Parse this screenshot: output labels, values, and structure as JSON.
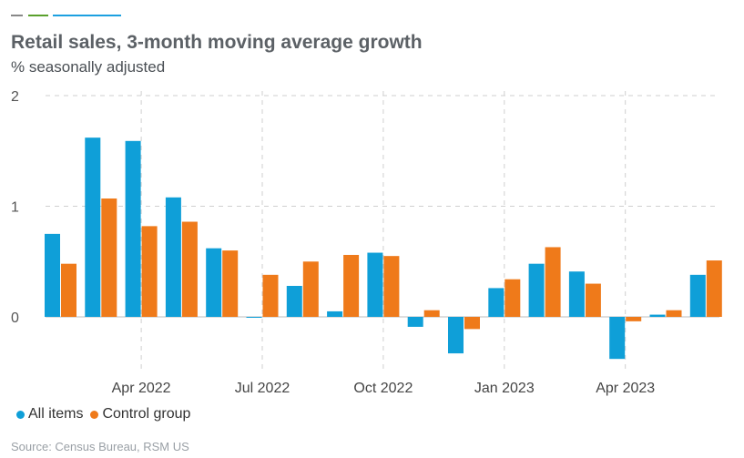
{
  "header": {
    "title": "Retail sales, 3-month moving average growth",
    "subtitle": "% seasonally adjusted"
  },
  "accent_colors": [
    "#888888",
    "#5aa02c",
    "#1ca0e0"
  ],
  "legend": {
    "items": [
      {
        "label": "All items",
        "color": "#0f9fd8"
      },
      {
        "label": "Control group",
        "color": "#ef7a1a"
      }
    ]
  },
  "footer": {
    "source": "Source: Census Bureau, RSM US"
  },
  "chart_data": {
    "type": "bar",
    "categories": [
      "Feb 2022",
      "Mar 2022",
      "Apr 2022",
      "May 2022",
      "Jun 2022",
      "Jul 2022",
      "Aug 2022",
      "Sep 2022",
      "Oct 2022",
      "Nov 2022",
      "Dec 2022",
      "Jan 2023",
      "Feb 2023",
      "Mar 2023",
      "Apr 2023",
      "May 2023",
      "Jun 2023"
    ],
    "x_tick_labels": [
      "Apr 2022",
      "Jul 2022",
      "Oct 2022",
      "Jan 2023",
      "Apr 2023"
    ],
    "x_tick_positions": [
      2,
      5,
      8,
      11,
      14
    ],
    "series": [
      {
        "name": "All items",
        "color": "#0f9fd8",
        "values": [
          0.75,
          1.62,
          1.59,
          1.08,
          0.62,
          0.0,
          0.28,
          0.05,
          0.58,
          -0.09,
          -0.33,
          0.26,
          0.48,
          0.41,
          -0.38,
          0.02,
          0.38
        ]
      },
      {
        "name": "Control group",
        "color": "#ef7a1a",
        "values": [
          0.48,
          1.07,
          0.82,
          0.86,
          0.6,
          0.38,
          0.5,
          0.56,
          0.55,
          0.06,
          -0.11,
          0.34,
          0.63,
          0.3,
          -0.04,
          0.06,
          0.51
        ]
      }
    ],
    "ylim": [
      -0.4,
      2.0
    ],
    "yticks": [
      0,
      1,
      2
    ],
    "grid": true,
    "legend_position": "bottom-left"
  }
}
